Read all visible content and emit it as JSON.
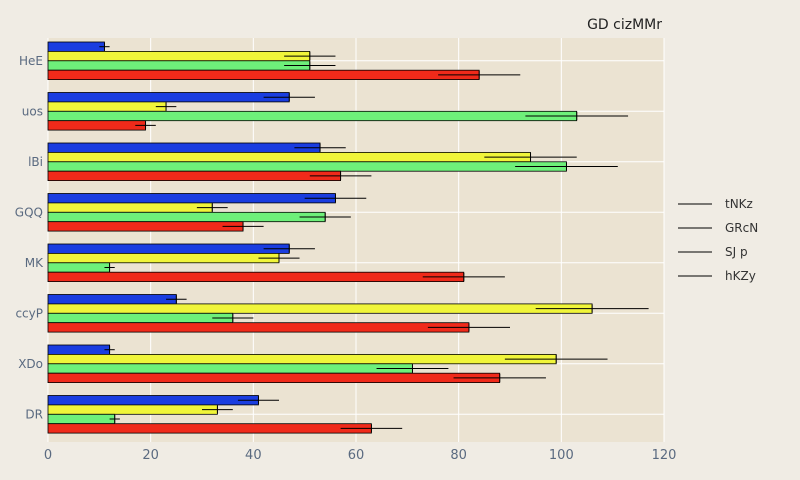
{
  "chart_data": {
    "type": "bar",
    "orientation": "horizontal",
    "title": "GD cizMMr",
    "xlabel": "",
    "ylabel": "",
    "xlim": [
      0,
      120
    ],
    "xticks": [
      0,
      20,
      40,
      60,
      80,
      100,
      120
    ],
    "grid": true,
    "legend_position": "right",
    "categories": [
      "HeE",
      "uos",
      "lBi",
      "GQQ",
      "MK",
      "ccyP",
      "XDo",
      "DR"
    ],
    "series": [
      {
        "name": "tNKz",
        "color": "#1a3de0",
        "values": [
          11,
          47,
          53,
          56,
          47,
          25,
          12,
          41
        ],
        "errors": [
          1,
          5,
          5,
          6,
          5,
          2,
          1,
          4
        ]
      },
      {
        "name": "GRcN",
        "color": "#f0f53a",
        "values": [
          51,
          23,
          94,
          32,
          45,
          106,
          99,
          33
        ],
        "errors": [
          5,
          2,
          9,
          3,
          4,
          11,
          10,
          3
        ]
      },
      {
        "name": "SJ p",
        "color": "#6ef07a",
        "values": [
          51,
          103,
          101,
          54,
          12,
          36,
          71,
          13
        ],
        "errors": [
          5,
          10,
          10,
          5,
          1,
          4,
          7,
          1
        ]
      },
      {
        "name": "hKZy",
        "color": "#f02a1a",
        "values": [
          84,
          19,
          57,
          38,
          81,
          82,
          88,
          63
        ],
        "errors": [
          8,
          2,
          6,
          4,
          8,
          8,
          9,
          6
        ]
      }
    ]
  }
}
